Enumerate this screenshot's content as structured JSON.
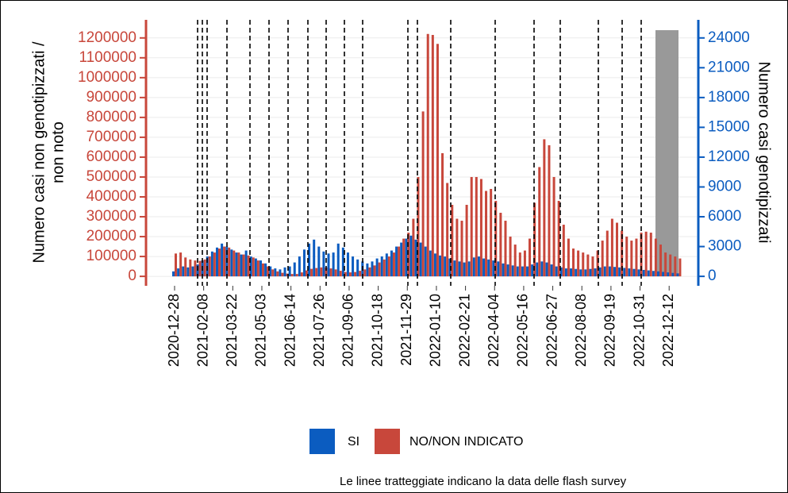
{
  "chart_data": {
    "type": "bar",
    "categories": [
      "2020-12-28",
      null,
      null,
      null,
      null,
      null,
      "2021-02-08",
      null,
      null,
      null,
      null,
      null,
      "2021-03-22",
      null,
      null,
      null,
      null,
      null,
      "2021-05-03",
      null,
      null,
      null,
      null,
      null,
      "2021-06-14",
      null,
      null,
      null,
      null,
      null,
      "2021-07-26",
      null,
      null,
      null,
      null,
      null,
      "2021-09-06",
      null,
      null,
      null,
      null,
      null,
      "2021-10-18",
      null,
      null,
      null,
      null,
      null,
      "2021-11-29",
      null,
      null,
      null,
      null,
      null,
      "2022-01-10",
      null,
      null,
      null,
      null,
      null,
      "2022-02-21",
      null,
      null,
      null,
      null,
      null,
      "2022-04-04",
      null,
      null,
      null,
      null,
      null,
      "2022-05-16",
      null,
      null,
      null,
      null,
      null,
      "2022-06-27",
      null,
      null,
      null,
      null,
      null,
      "2022-08-08",
      null,
      null,
      null,
      null,
      null,
      "2022-09-19",
      null,
      null,
      null,
      null,
      null,
      "2022-10-31",
      null,
      null,
      null,
      null,
      null,
      "2022-12-12",
      null,
      null
    ],
    "series": [
      {
        "name": "SI",
        "color": "#0b5cc0",
        "axis": "y2",
        "values": [
          500,
          800,
          1000,
          900,
          1000,
          1200,
          1600,
          2000,
          2500,
          2900,
          3300,
          3000,
          2700,
          2400,
          2200,
          2600,
          2000,
          1800,
          1600,
          1300,
          1000,
          800,
          700,
          900,
          1000,
          1400,
          2000,
          2700,
          3300,
          3700,
          3000,
          2500,
          2300,
          2400,
          3300,
          2900,
          2400,
          2000,
          1700,
          1500,
          1300,
          1500,
          1800,
          2000,
          2300,
          2600,
          3000,
          3400,
          3800,
          4100,
          3700,
          3400,
          3000,
          2600,
          2300,
          2100,
          2000,
          1800,
          1600,
          1500,
          1400,
          1500,
          1900,
          2000,
          1800,
          1700,
          1600,
          1500,
          1300,
          1200,
          1100,
          1000,
          1000,
          1000,
          1200,
          1400,
          1500,
          1400,
          1200,
          1000,
          900,
          800,
          800,
          750,
          700,
          700,
          750,
          800,
          900,
          1000,
          1000,
          950,
          900,
          850,
          800,
          750,
          700,
          650,
          600,
          550,
          500,
          450,
          400,
          350,
          300
        ]
      },
      {
        "name": "NO/NON INDICATO",
        "color": "#c8473b",
        "values": [
          115000,
          120000,
          95000,
          85000,
          80000,
          78000,
          85000,
          100000,
          120000,
          140000,
          150000,
          145000,
          130000,
          120000,
          110000,
          105000,
          95000,
          80000,
          65000,
          50000,
          35000,
          25000,
          18000,
          14000,
          12000,
          12000,
          20000,
          30000,
          38000,
          42000,
          45000,
          45000,
          40000,
          35000,
          28000,
          22000,
          20000,
          22000,
          28000,
          35000,
          45000,
          55000,
          70000,
          85000,
          100000,
          120000,
          150000,
          190000,
          220000,
          290000,
          500000,
          830000,
          1220000,
          1215000,
          1170000,
          620000,
          470000,
          360000,
          290000,
          280000,
          360000,
          500000,
          500000,
          490000,
          430000,
          440000,
          380000,
          320000,
          280000,
          200000,
          160000,
          120000,
          130000,
          190000,
          370000,
          550000,
          690000,
          660000,
          500000,
          380000,
          260000,
          190000,
          140000,
          130000,
          120000,
          110000,
          100000,
          130000,
          180000,
          230000,
          290000,
          270000,
          230000,
          200000,
          180000,
          190000,
          220000,
          225000,
          220000,
          190000,
          160000,
          120000,
          110000,
          100000,
          90000
        ]
      }
    ],
    "y_label": [
      "Numero casi non genotipizzati /",
      "non noto"
    ],
    "y2_label": "Numero casi genotipizzati",
    "ylim": [
      -47500,
      1291000
    ],
    "yticks": [
      0,
      100000,
      200000,
      300000,
      400000,
      500000,
      600000,
      700000,
      800000,
      900000,
      1000000,
      1100000,
      1200000
    ],
    "y2lim": [
      -950,
      25820
    ],
    "y2ticks": [
      0,
      3000,
      6000,
      9000,
      12000,
      15000,
      18000,
      21000,
      24000
    ],
    "y_color": "#c8473b",
    "y2_color": "#0b5cc0",
    "grid": true,
    "note": "Le linee tratteggiate indicano la data delle flash survey"
  }
}
